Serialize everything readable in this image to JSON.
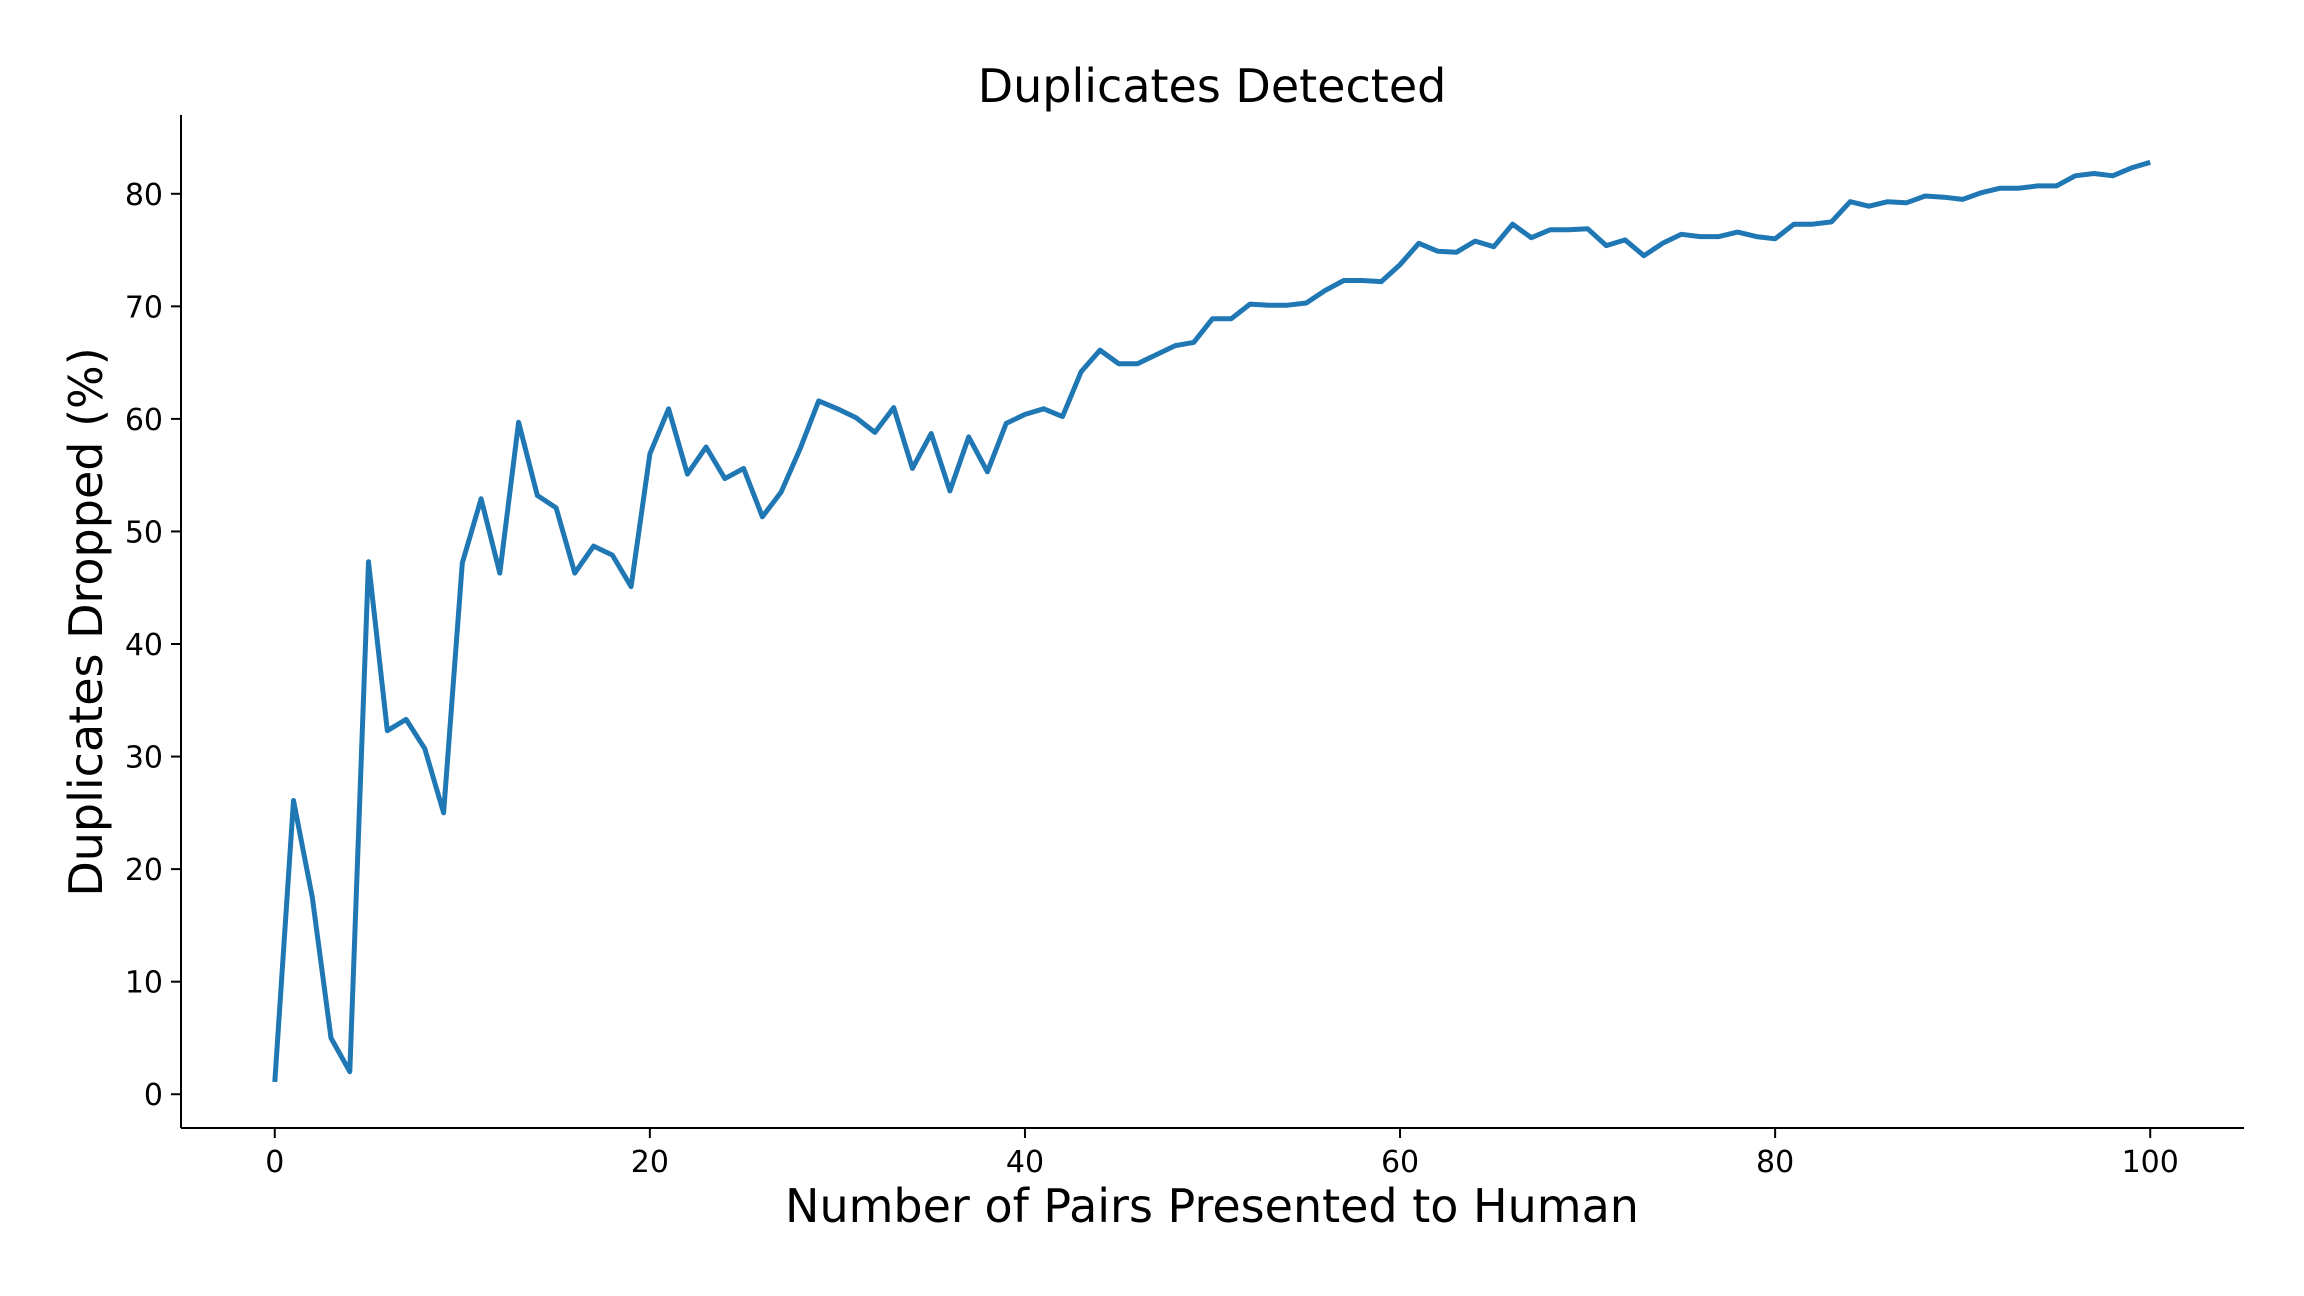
{
  "chart_data": {
    "type": "line",
    "title": "Duplicates Detected",
    "xlabel": "Number of Pairs Presented to Human",
    "ylabel": "Duplicates Dropped (%)",
    "xlim": [
      -5,
      105
    ],
    "ylim": [
      -3,
      87
    ],
    "xticks": [
      0,
      20,
      40,
      60,
      80,
      100
    ],
    "yticks": [
      0,
      10,
      20,
      30,
      40,
      50,
      60,
      70,
      80
    ],
    "grid": false,
    "colors": {
      "line": "#1f77b4",
      "axis": "#000000"
    },
    "series": [
      {
        "x": [
          0,
          1,
          2,
          3,
          4,
          5,
          6,
          7,
          8,
          9,
          10,
          11,
          12,
          13,
          14,
          15,
          16,
          17,
          18,
          19,
          20,
          21,
          22,
          23,
          24,
          25,
          26,
          27,
          28,
          29,
          30,
          31,
          32,
          33,
          34,
          35,
          36,
          37,
          38,
          39,
          40,
          41,
          42,
          43,
          44,
          45,
          46,
          47,
          48,
          49,
          50,
          51,
          52,
          53,
          54,
          55,
          56,
          57,
          58,
          59,
          60,
          61,
          62,
          63,
          64,
          65,
          66,
          67,
          68,
          69,
          70,
          71,
          72,
          73,
          74,
          75,
          76,
          77,
          78,
          79,
          80,
          81,
          82,
          83,
          84,
          85,
          86,
          87,
          88,
          89,
          90,
          91,
          92,
          93,
          94,
          95,
          96,
          97,
          98,
          99,
          100
        ],
        "values": [
          1.1,
          26.1,
          17.5,
          5.0,
          2.0,
          47.3,
          32.3,
          33.3,
          30.7,
          25.0,
          47.2,
          52.9,
          46.3,
          59.7,
          53.2,
          52.1,
          46.3,
          48.7,
          47.9,
          45.1,
          56.9,
          60.9,
          55.1,
          57.5,
          54.7,
          55.6,
          51.3,
          53.5,
          57.3,
          61.6,
          60.9,
          60.1,
          58.8,
          61.0,
          55.6,
          58.7,
          53.6,
          58.4,
          55.3,
          59.6,
          60.4,
          60.9,
          60.2,
          64.2,
          66.1,
          64.9,
          64.9,
          65.7,
          66.5,
          66.8,
          68.9,
          68.9,
          70.2,
          70.1,
          70.1,
          70.3,
          71.4,
          72.3,
          72.3,
          72.2,
          73.7,
          75.6,
          74.9,
          74.8,
          75.8,
          75.3,
          77.3,
          76.1,
          76.8,
          76.8,
          76.9,
          75.4,
          75.9,
          74.5,
          75.6,
          76.4,
          76.2,
          76.2,
          76.6,
          76.2,
          76.0,
          77.3,
          77.3,
          77.5,
          79.3,
          78.9,
          79.3,
          79.2,
          79.8,
          79.7,
          79.5,
          80.1,
          80.5,
          80.5,
          80.7,
          80.7,
          81.6,
          81.8,
          81.6,
          82.3,
          82.8
        ]
      }
    ]
  }
}
